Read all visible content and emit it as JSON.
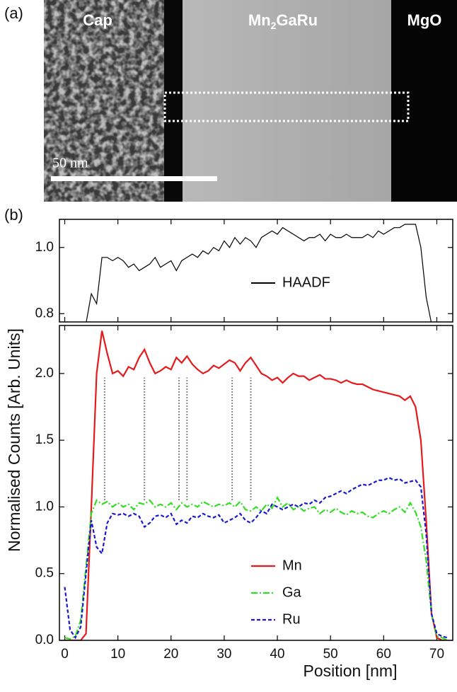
{
  "panel_a": {
    "label": "(a)",
    "region_labels": {
      "cap": "Cap",
      "film_parts": [
        "Mn",
        "2",
        "GaRu"
      ],
      "substrate": "MgO"
    },
    "scale_bar": "50 nm"
  },
  "chart_data": [
    {
      "type": "line",
      "panel_label": "(b)",
      "xlim": [
        -1,
        73
      ],
      "ylim": [
        0.775,
        1.085
      ],
      "yticks": [
        {
          "value": 0.8,
          "label": "0.8"
        },
        {
          "value": 1.0,
          "label": "1.0"
        }
      ],
      "legend": "center",
      "x": [
        4,
        5,
        6,
        7,
        8,
        9,
        10,
        11,
        12,
        13,
        14,
        15,
        16,
        17,
        18,
        19,
        20,
        21,
        22,
        23,
        24,
        25,
        26,
        27,
        28,
        29,
        30,
        31,
        32,
        33,
        34,
        35,
        36,
        37,
        38,
        39,
        40,
        41,
        42,
        43,
        44,
        45,
        46,
        47,
        48,
        49,
        50,
        51,
        52,
        53,
        54,
        55,
        56,
        57,
        58,
        59,
        60,
        61,
        62,
        63,
        64,
        65,
        66,
        67,
        68,
        69
      ],
      "series": [
        {
          "name": "HAADF",
          "color": "#000000",
          "style": "solid",
          "values": [
            0.77,
            0.86,
            0.83,
            0.97,
            0.97,
            0.96,
            0.97,
            0.96,
            0.94,
            0.95,
            0.93,
            0.94,
            0.95,
            0.97,
            0.94,
            0.95,
            0.96,
            0.93,
            0.96,
            0.97,
            0.98,
            0.97,
            0.99,
            0.98,
            1.0,
            0.99,
            1.02,
            1.0,
            1.03,
            1.01,
            1.03,
            1.02,
            1.0,
            1.03,
            1.04,
            1.05,
            1.04,
            1.06,
            1.05,
            1.04,
            1.03,
            1.02,
            1.03,
            1.03,
            1.04,
            1.02,
            1.04,
            1.03,
            1.03,
            1.04,
            1.03,
            1.03,
            1.03,
            1.04,
            1.03,
            1.05,
            1.04,
            1.05,
            1.06,
            1.06,
            1.07,
            1.07,
            1.07,
            1.0,
            0.85,
            0.77
          ]
        }
      ]
    },
    {
      "type": "line",
      "xlim": [
        -1,
        73
      ],
      "ylim": [
        0,
        2.36
      ],
      "xticks": [
        0,
        10,
        20,
        30,
        40,
        50,
        60,
        70
      ],
      "yticks": [
        {
          "value": 0,
          "label": "0.0"
        },
        {
          "value": 0.5,
          "label": "0.5"
        },
        {
          "value": 1,
          "label": "1.0"
        },
        {
          "value": 1.5,
          "label": "1.5"
        },
        {
          "value": 2,
          "label": "2.0"
        }
      ],
      "xlabel": "Position [nm]",
      "ylabel": "Normalised Counts [Arb. Units]",
      "legend": "lower center",
      "vlines": [
        7.5,
        15,
        21.5,
        23,
        31.5,
        35
      ],
      "vline_range": [
        1.05,
        1.97
      ],
      "x": [
        0,
        1,
        2,
        3,
        4,
        5,
        6,
        7,
        8,
        9,
        10,
        11,
        12,
        13,
        14,
        15,
        16,
        17,
        18,
        19,
        20,
        21,
        22,
        23,
        24,
        25,
        26,
        27,
        28,
        29,
        30,
        31,
        32,
        33,
        34,
        35,
        36,
        37,
        38,
        39,
        40,
        41,
        42,
        43,
        44,
        45,
        46,
        47,
        48,
        49,
        50,
        51,
        52,
        53,
        54,
        55,
        56,
        57,
        58,
        59,
        60,
        61,
        62,
        63,
        64,
        65,
        66,
        67,
        68,
        69,
        70,
        71,
        72
      ],
      "series": [
        {
          "name": "Mn",
          "color": "#e41a1c",
          "style": "solid",
          "values": [
            0,
            0,
            0,
            0,
            0.05,
            1.0,
            2.0,
            2.32,
            2.15,
            2.0,
            2.02,
            1.98,
            2.05,
            2.03,
            2.12,
            2.18,
            2.08,
            2.0,
            2.02,
            2.05,
            2.03,
            2.12,
            2.08,
            2.13,
            2.07,
            2.03,
            2.0,
            2.02,
            2.06,
            2.04,
            2.07,
            2.1,
            2.08,
            2.02,
            2.08,
            2.12,
            2.06,
            2.0,
            1.98,
            1.95,
            1.97,
            1.93,
            1.97,
            2.0,
            1.98,
            1.98,
            1.95,
            1.97,
            1.99,
            1.96,
            1.96,
            1.95,
            1.93,
            1.95,
            1.93,
            1.92,
            1.92,
            1.9,
            1.88,
            1.87,
            1.86,
            1.85,
            1.84,
            1.83,
            1.8,
            1.83,
            1.75,
            1.5,
            0.9,
            0.2,
            0.02,
            0,
            0
          ]
        },
        {
          "name": "Ga",
          "color": "#33dd22",
          "style": "dashdot",
          "values": [
            0.02,
            0.01,
            0.03,
            0.15,
            0.55,
            0.95,
            1.05,
            1.02,
            1.04,
            1.0,
            1.03,
            1.0,
            1.02,
            0.98,
            1.03,
            1.02,
            1.05,
            1.0,
            1.02,
            1.0,
            1.03,
            0.98,
            1.03,
            1.0,
            1.02,
            1.0,
            1.04,
            1.02,
            1.0,
            1.02,
            1.01,
            1.03,
            1.0,
            1.04,
            0.98,
            0.97,
            1.0,
            0.97,
            1.02,
            0.99,
            1.07,
            1.0,
            1.03,
            0.98,
            1.0,
            0.97,
            0.99,
            1.0,
            0.95,
            0.98,
            0.96,
            0.99,
            0.96,
            0.94,
            0.97,
            0.95,
            0.96,
            0.93,
            0.92,
            0.95,
            0.97,
            0.95,
            0.98,
            1.0,
            0.96,
            1.03,
            0.96,
            0.85,
            0.6,
            0.2,
            0.03,
            0.02,
            0
          ]
        },
        {
          "name": "Ru",
          "color": "#1a1acc",
          "style": "dashed",
          "values": [
            0.4,
            0.08,
            0.02,
            0.1,
            0.5,
            0.9,
            0.7,
            0.65,
            0.88,
            0.95,
            0.94,
            0.95,
            0.93,
            0.95,
            0.93,
            0.85,
            0.88,
            0.93,
            0.94,
            0.92,
            0.95,
            0.87,
            0.9,
            0.88,
            0.93,
            0.92,
            0.95,
            0.93,
            0.92,
            0.94,
            0.88,
            0.9,
            0.92,
            0.95,
            0.9,
            0.88,
            0.92,
            0.97,
            0.95,
            1.02,
            1.0,
            0.98,
            1.0,
            1.02,
            1.0,
            1.03,
            1.02,
            1.05,
            1.03,
            1.07,
            1.08,
            1.1,
            1.12,
            1.1,
            1.13,
            1.15,
            1.17,
            1.16,
            1.18,
            1.2,
            1.2,
            1.22,
            1.2,
            1.21,
            1.18,
            1.19,
            1.2,
            1.15,
            0.8,
            0.2,
            0.05,
            0.03,
            0.02
          ]
        }
      ]
    }
  ]
}
